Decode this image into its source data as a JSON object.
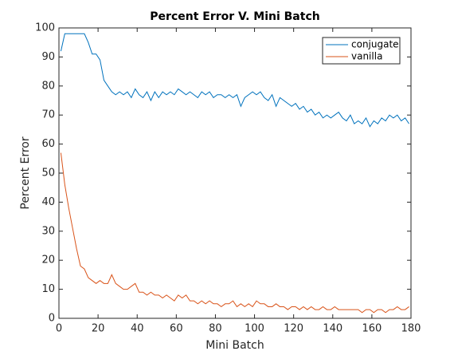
{
  "chart_data": {
    "type": "line",
    "title": "Percent Error V. Mini Batch",
    "x_label": "Mini Batch",
    "y_label": "Percent Error",
    "x": [
      1,
      3,
      5,
      7,
      9,
      11,
      13,
      15,
      17,
      19,
      21,
      23,
      25,
      27,
      29,
      31,
      33,
      35,
      37,
      39,
      41,
      43,
      45,
      47,
      49,
      51,
      53,
      55,
      57,
      59,
      61,
      63,
      65,
      67,
      69,
      71,
      73,
      75,
      77,
      79,
      81,
      83,
      85,
      87,
      89,
      91,
      93,
      95,
      97,
      99,
      101,
      103,
      105,
      107,
      109,
      111,
      113,
      115,
      117,
      119,
      121,
      123,
      125,
      127,
      129,
      131,
      133,
      135,
      137,
      139,
      141,
      143,
      145,
      147,
      149,
      151,
      153,
      155,
      157,
      159,
      161,
      163,
      165,
      167,
      169,
      171,
      173,
      175,
      177,
      179
    ],
    "series": [
      {
        "name": "conjugate",
        "color": "#0072bd",
        "values": [
          92,
          98,
          98,
          98,
          98,
          98,
          98,
          95,
          91,
          91,
          89,
          82,
          80,
          78,
          77,
          78,
          77,
          78,
          76,
          79,
          77,
          76,
          78,
          75,
          78,
          76,
          78,
          77,
          78,
          77,
          79,
          78,
          77,
          78,
          77,
          76,
          78,
          77,
          78,
          76,
          77,
          77,
          76,
          77,
          76,
          77,
          73,
          76,
          77,
          78,
          77,
          78,
          76,
          75,
          77,
          73,
          76,
          75,
          74,
          73,
          74,
          72,
          73,
          71,
          72,
          70,
          71,
          69,
          70,
          69,
          70,
          71,
          69,
          68,
          70,
          67,
          68,
          67,
          69,
          66,
          68,
          67,
          69,
          68,
          70,
          69,
          70,
          68,
          69,
          67
        ]
      },
      {
        "name": "vanilla",
        "color": "#d95319",
        "values": [
          57,
          46,
          38,
          31,
          24,
          18,
          17,
          14,
          13,
          12,
          13,
          12,
          12,
          15,
          12,
          11,
          10,
          10,
          11,
          12,
          9,
          9,
          8,
          9,
          8,
          8,
          7,
          8,
          7,
          6,
          8,
          7,
          8,
          6,
          6,
          5,
          6,
          5,
          6,
          5,
          5,
          4,
          5,
          5,
          6,
          4,
          5,
          4,
          5,
          4,
          6,
          5,
          5,
          4,
          4,
          5,
          4,
          4,
          3,
          4,
          4,
          3,
          4,
          3,
          4,
          3,
          3,
          4,
          3,
          3,
          4,
          3,
          3,
          3,
          3,
          3,
          3,
          2,
          3,
          3,
          2,
          3,
          3,
          2,
          3,
          3,
          4,
          3,
          3,
          4
        ]
      }
    ],
    "xlim": [
      0,
      180
    ],
    "xticks": [
      0,
      20,
      40,
      60,
      80,
      100,
      120,
      140,
      160,
      180
    ],
    "ylim": [
      0,
      100
    ],
    "yticks": [
      0,
      10,
      20,
      30,
      40,
      50,
      60,
      70,
      80,
      90,
      100
    ],
    "legend": "northeast"
  }
}
